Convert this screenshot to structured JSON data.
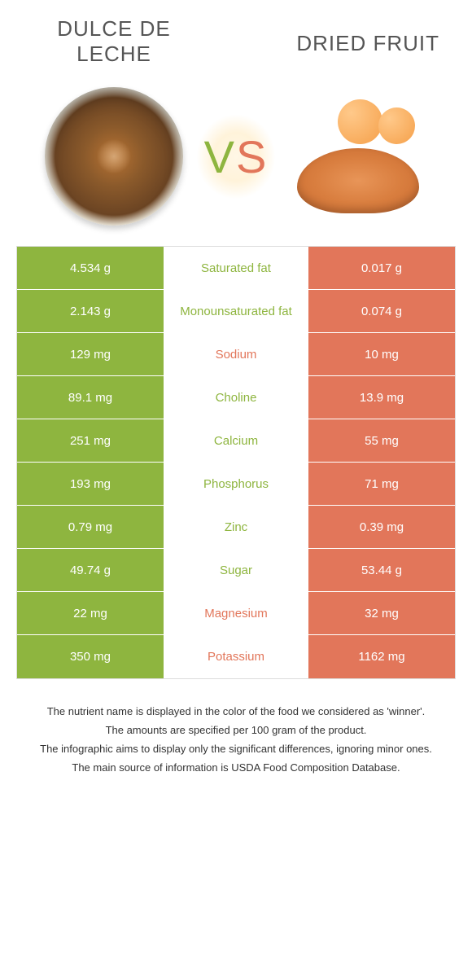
{
  "colors": {
    "green": "#8eb53f",
    "orange": "#e2765a",
    "vs_v": "#8eb53f",
    "vs_s": "#e2765a"
  },
  "titles": {
    "left": "Dulce de leche",
    "right": "Dried Fruit",
    "vs_v": "V",
    "vs_s": "S"
  },
  "rows": [
    {
      "left": "4.534 g",
      "label": "Saturated fat",
      "right": "0.017 g",
      "winner": "left"
    },
    {
      "left": "2.143 g",
      "label": "Monounsaturated fat",
      "right": "0.074 g",
      "winner": "left"
    },
    {
      "left": "129 mg",
      "label": "Sodium",
      "right": "10 mg",
      "winner": "right"
    },
    {
      "left": "89.1 mg",
      "label": "Choline",
      "right": "13.9 mg",
      "winner": "left"
    },
    {
      "left": "251 mg",
      "label": "Calcium",
      "right": "55 mg",
      "winner": "left"
    },
    {
      "left": "193 mg",
      "label": "Phosphorus",
      "right": "71 mg",
      "winner": "left"
    },
    {
      "left": "0.79 mg",
      "label": "Zinc",
      "right": "0.39 mg",
      "winner": "left"
    },
    {
      "left": "49.74 g",
      "label": "Sugar",
      "right": "53.44 g",
      "winner": "left"
    },
    {
      "left": "22 mg",
      "label": "Magnesium",
      "right": "32 mg",
      "winner": "right"
    },
    {
      "left": "350 mg",
      "label": "Potassium",
      "right": "1162 mg",
      "winner": "right"
    }
  ],
  "footnotes": [
    "The nutrient name is displayed in the color of the food we considered as 'winner'.",
    "The amounts are specified per 100 gram of the product.",
    "The infographic aims to display only the significant differences, ignoring minor ones.",
    "The main source of information is USDA Food Composition Database."
  ]
}
